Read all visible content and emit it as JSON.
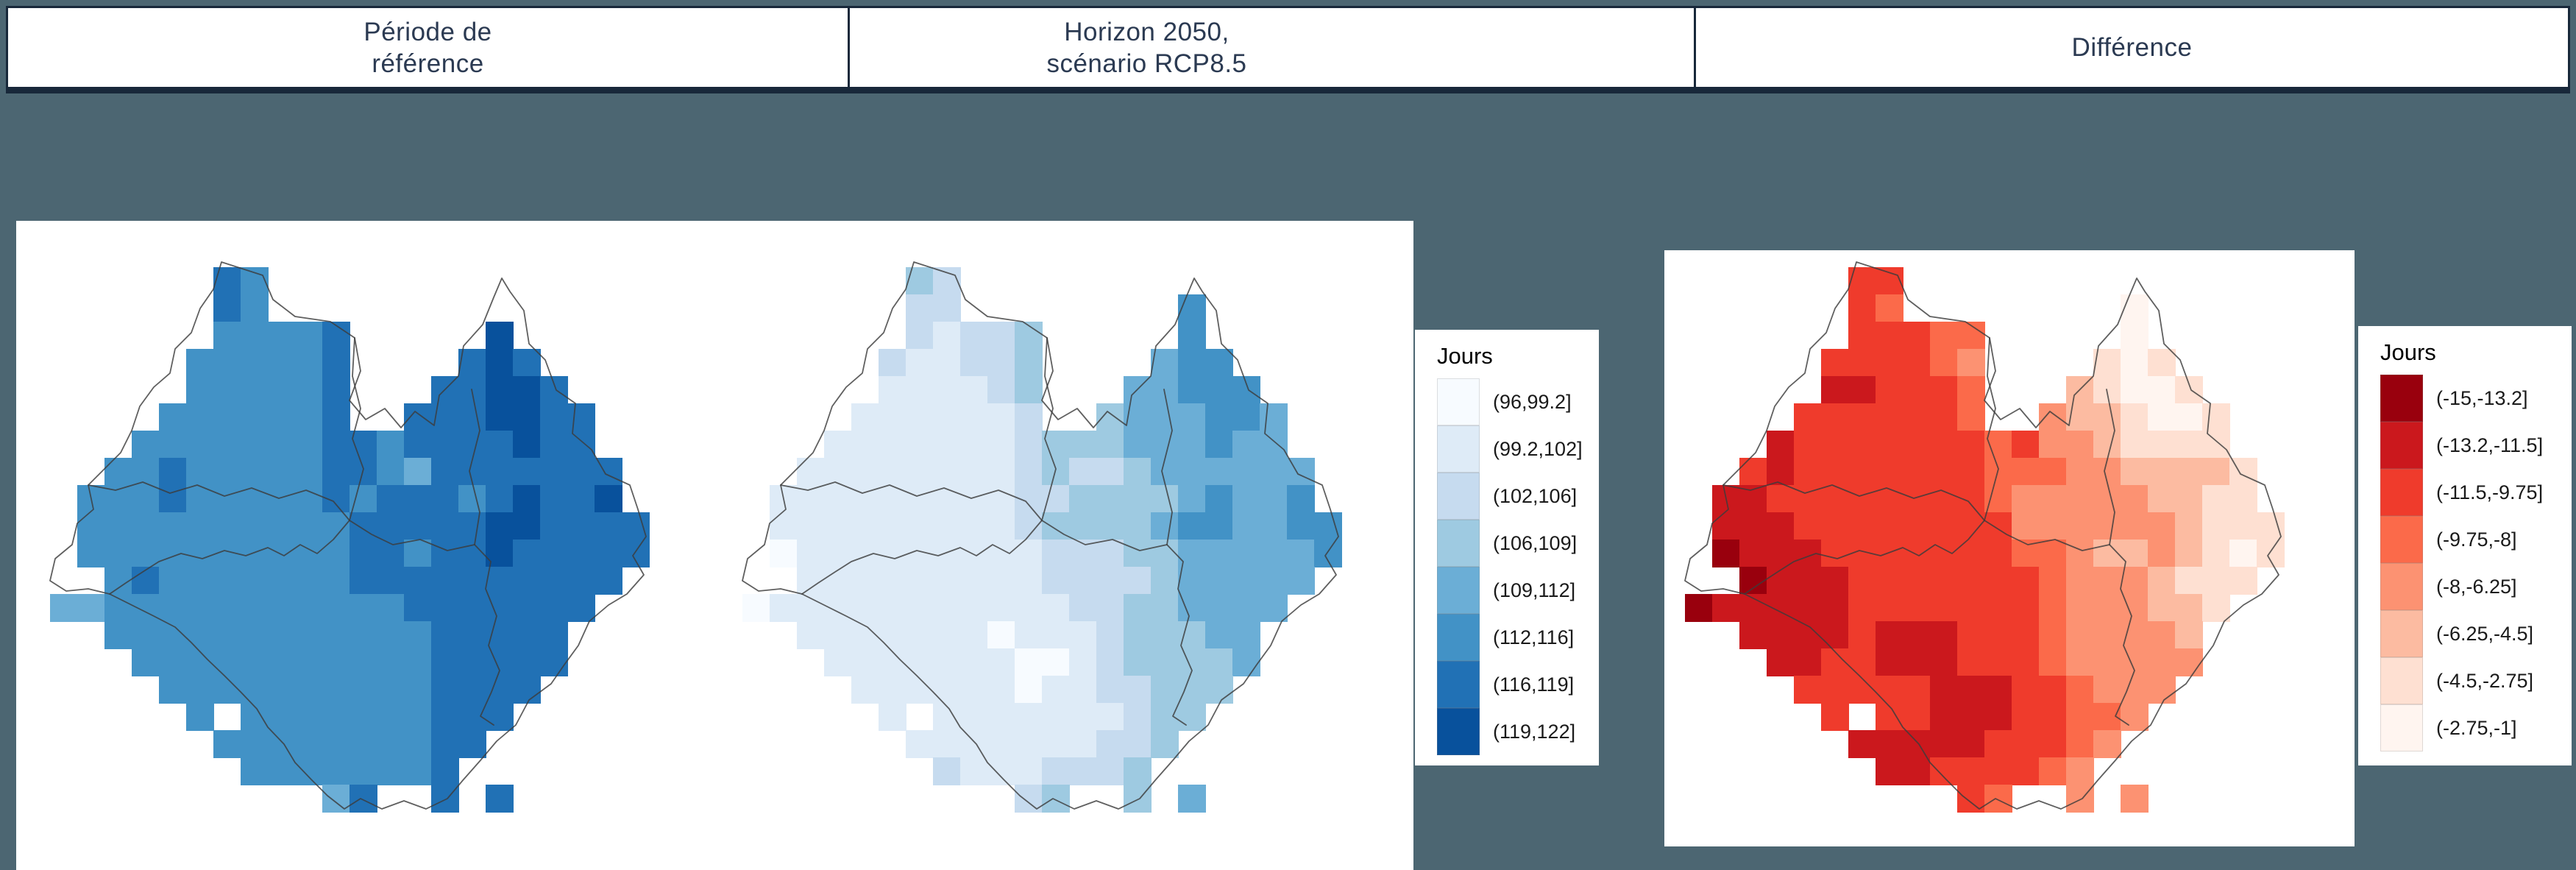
{
  "background_color": "#4C6672",
  "frame_border_color": "#18283A",
  "header": {
    "text_color": "#2B3A52",
    "cells": [
      {
        "line1": "Période de",
        "line2": "référence"
      },
      {
        "line1": "Horizon 2050,",
        "line2": "scénario RCP8.5"
      },
      {
        "line1": "Différence",
        "line2": ""
      }
    ]
  },
  "legends": {
    "blue": {
      "title": "Jours",
      "entries": [
        {
          "label": "(96,99.2]",
          "color": "#F7FBFF"
        },
        {
          "label": "(99.2,102]",
          "color": "#DEEBF7"
        },
        {
          "label": "(102,106]",
          "color": "#C6DBEF"
        },
        {
          "label": "(106,109]",
          "color": "#9ECAE1"
        },
        {
          "label": "(109,112]",
          "color": "#6BAED6"
        },
        {
          "label": "(112,116]",
          "color": "#4292C6"
        },
        {
          "label": "(116,119]",
          "color": "#2171B5"
        },
        {
          "label": "(119,122]",
          "color": "#08519C"
        }
      ]
    },
    "red": {
      "title": "Jours",
      "entries": [
        {
          "label": "(-15,-13.2]",
          "color": "#99000D"
        },
        {
          "label": "(-13.2,-11.5]",
          "color": "#CB181D"
        },
        {
          "label": "(-11.5,-9.75]",
          "color": "#EF3B2C"
        },
        {
          "label": "(-9.75,-8]",
          "color": "#FB6A4A"
        },
        {
          "label": "(-8,-6.25]",
          "color": "#FC9272"
        },
        {
          "label": "(-6.25,-4.5]",
          "color": "#FCBBA1"
        },
        {
          "label": "(-4.5,-2.75]",
          "color": "#FEE0D2"
        },
        {
          "label": "(-2.75,-1]",
          "color": "#FFF5F0"
        }
      ]
    }
  },
  "chart_data": {
    "type": "heatmap",
    "unit": "Jours",
    "title": "Gridded climate indicator (days): reference period, horizon 2050 RCP8.5, and difference",
    "cell_size_px": 37,
    "panels": [
      {
        "name": "periode_de_reference",
        "header_label": "Période de référence",
        "legend": "blue",
        "value_bins": [
          "(96,99.2]",
          "(99.2,102]",
          "(102,106]",
          "(106,109]",
          "(109,112]",
          "(112,116]",
          "(116,119]",
          "(119,122]"
        ],
        "palette": [
          "#F7FBFF",
          "#DEEBF7",
          "#C6DBEF",
          "#9ECAE1",
          "#6BAED6",
          "#4292C6",
          "#2171B5",
          "#08519C"
        ],
        "grid": [
          "......65..............",
          "......65..............",
          "......55556.....7.....",
          ".....555556....676....",
          ".....555556...66776...",
          "....5555556..6667766..",
          "...55555556656666766..",
          "..5565555566546666666.",
          ".55565555565666567667.",
          ".555555555566666776666",
          ".555555555566566766666",
          "..5655555556666666666.",
          "44555555555556666666..",
          "..55555555555566666...",
          "...5555555555566666...",
          "....55555555556666....",
          ".....5.5555555666.....",
          "......5555555566......",
          ".......55555556.......",
          "..........46..6.6....."
        ]
      },
      {
        "name": "horizon_2050_rcp85",
        "header_label": "Horizon 2050, scénario RCP8.5",
        "legend": "blue",
        "value_bins": [
          "(96,99.2]",
          "(99.2,102]",
          "(102,106]",
          "(106,109]",
          "(109,112]",
          "(112,116]",
          "(116,119]",
          "(119,122]"
        ],
        "palette": [
          "#F7FBFF",
          "#DEEBF7",
          "#C6DBEF",
          "#9ECAE1",
          "#6BAED6",
          "#4292C6",
          "#2171B5",
          "#08519C"
        ],
        "grid": [
          "......32..............",
          "......22........5.....",
          "......21223.....5.....",
          ".....211223....455....",
          ".....111123...44555...",
          "....1111112..3444554..",
          "...11111112333444544..",
          "..1111111123223444444.",
          ".11111111122333345445.",
          ".111111111233334554455",
          ".011111111122233444445",
          "..1111111112222344444.",
          "01111111111122334444..",
          "..11111110111233344...",
          "...1111111001233334...",
          "....11111101122333....",
          ".....1.1111111233.....",
          "......1111111223......",
          ".......21112223.......",
          "..........23..3.4....."
        ]
      },
      {
        "name": "difference",
        "header_label": "Différence",
        "legend": "red",
        "value_bins": [
          "(-15,-13.2]",
          "(-13.2,-11.5]",
          "(-11.5,-9.75]",
          "(-9.75,-8]",
          "(-8,-6.25]",
          "(-6.25,-4.5]",
          "(-4.5,-2.75]",
          "(-2.75,-1]"
        ],
        "palette": [
          "#99000D",
          "#CB181D",
          "#EF3B2C",
          "#FB6A4A",
          "#FC9272",
          "#FCBBA1",
          "#FEE0D2",
          "#FFF5F0"
        ],
        "grid": [
          "......22..............",
          "......23........7.....",
          "......22233.....7.....",
          ".....222234....676....",
          ".....112223...56776...",
          "....2222223..4556776..",
          "...12222222324456666..",
          "..2122222223334455556.",
          ".11222222223444445566.",
          ".111222222224444445666",
          ".011122222223345545676",
          "..0111222222234445666.",
          "01111122222223444556..",
          "..11112111222344445...",
          "...1122111222344444...",
          "....22222111223444....",
          ".....2.2211122334.....",
          "......1111122234......",
          ".......11222234.......",
          "..........23..4.4....."
        ]
      }
    ]
  }
}
